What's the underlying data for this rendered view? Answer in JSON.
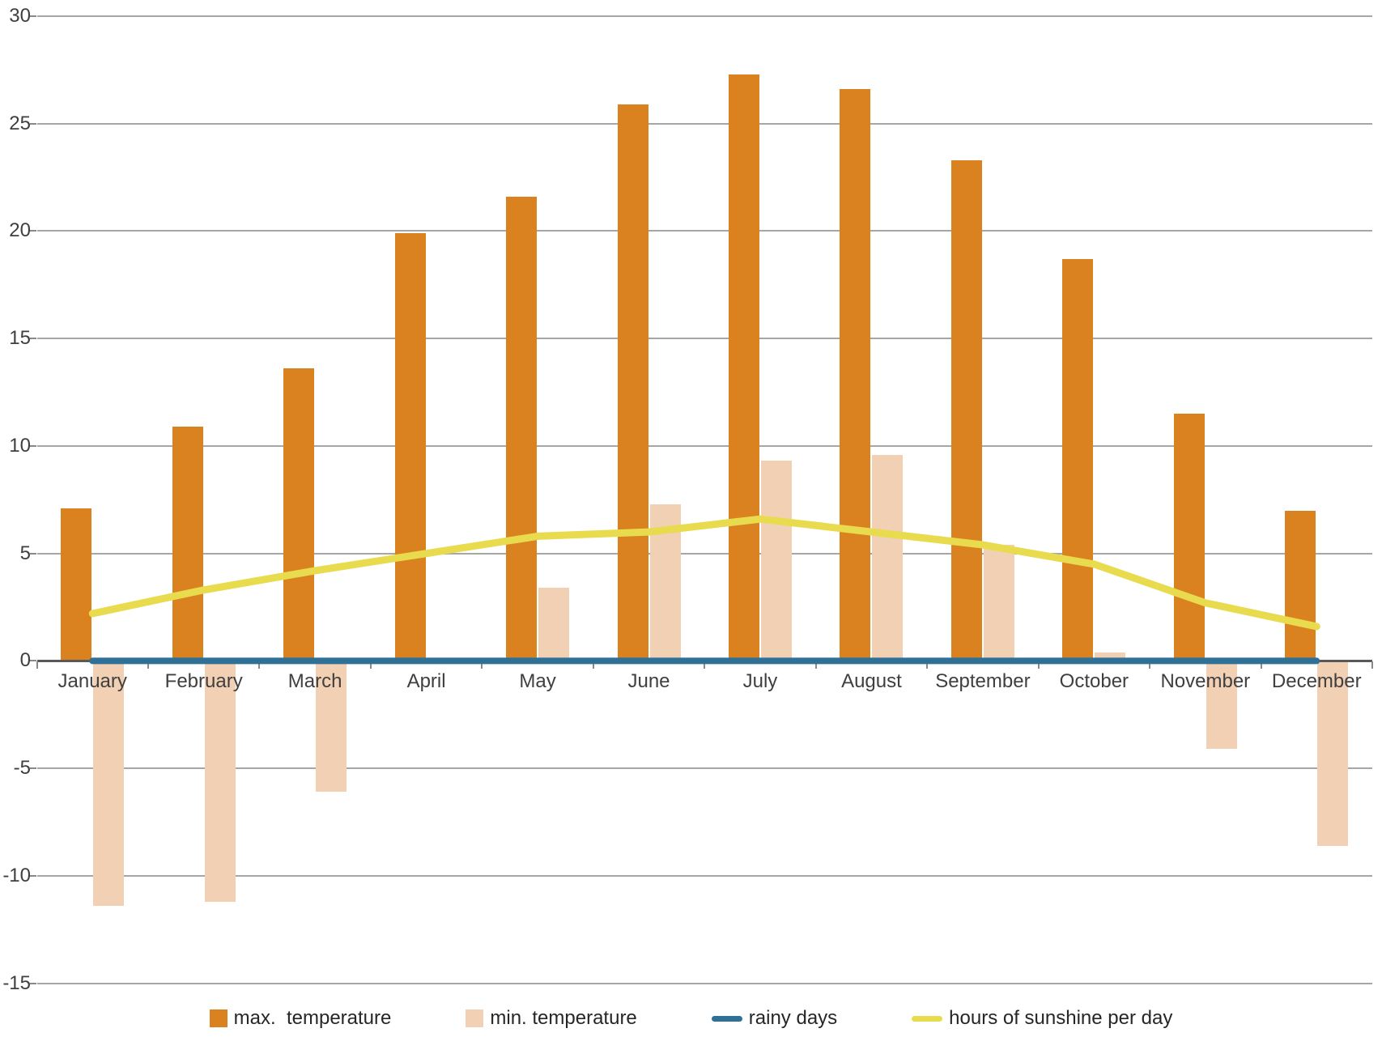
{
  "chart_data": {
    "type": "combo-bar-line",
    "title": "",
    "xlabel": "",
    "ylabel": "",
    "categories": [
      "January",
      "February",
      "March",
      "April",
      "May",
      "June",
      "July",
      "August",
      "September",
      "October",
      "November",
      "December"
    ],
    "series": [
      {
        "name": "max.  temperature",
        "type": "bar",
        "values": [
          7.1,
          10.9,
          13.6,
          19.9,
          21.6,
          25.9,
          27.3,
          26.6,
          23.3,
          18.7,
          11.5,
          7.0
        ]
      },
      {
        "name": "min. temperature",
        "type": "bar",
        "values": [
          -11.4,
          -11.2,
          -6.1,
          0,
          3.4,
          7.3,
          9.3,
          9.6,
          5.4,
          0.4,
          -4.1,
          -8.6
        ]
      },
      {
        "name": "rainy days",
        "type": "line",
        "values": [
          0,
          0,
          0,
          0,
          0,
          0,
          0,
          0,
          0,
          0,
          0,
          0
        ]
      },
      {
        "name": "hours of sunshine per day",
        "type": "line",
        "values": [
          2.2,
          3.3,
          4.2,
          5.0,
          5.8,
          6.0,
          6.6,
          6.0,
          5.4,
          4.5,
          2.7,
          1.6
        ]
      }
    ],
    "ylim": [
      -15,
      30
    ],
    "ytick_step": 5,
    "y_tick_labels": [
      "30",
      "25",
      "20",
      "15",
      "10",
      "5",
      "0",
      "-5",
      "-10",
      "-15",
      "-15"
    ],
    "grid": true,
    "legend_position": "bottom"
  },
  "colors": {
    "max_bar": "#D9821F",
    "min_bar": "#F2D0B4",
    "rainy_line": "#2E7096",
    "sunshine_line": "#E8DB4D",
    "gridline": "#A6A6A6",
    "axis": "#595959",
    "text": "#3F3F3F",
    "background": "#FFFFFF"
  }
}
